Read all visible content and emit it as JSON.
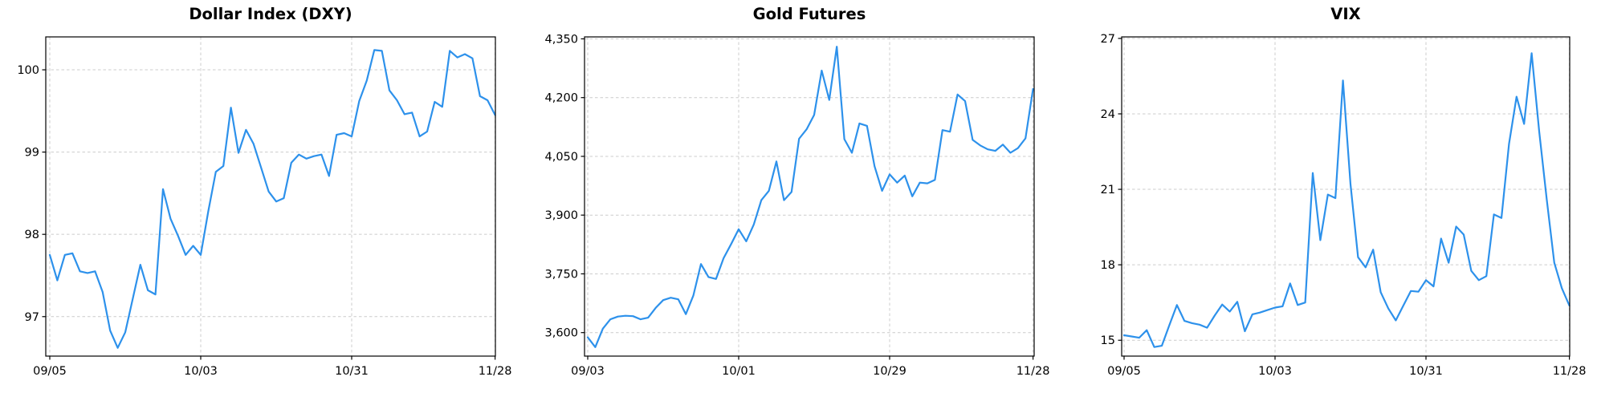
{
  "page": {
    "background": "#ffffff",
    "text_color": "#000000"
  },
  "chart_data": [
    {
      "type": "line",
      "title": "Dollar Index (DXY)",
      "series_name": "DXY",
      "line_color": "#2d91eb",
      "grid": true,
      "grid_color": "#cccccc",
      "legend": "none",
      "x_tick_labels": [
        "09/05",
        "10/03",
        "10/31",
        "11/28"
      ],
      "x_tick_indices": [
        0,
        20,
        40,
        59
      ],
      "y_ticks": [
        97,
        98,
        99,
        100
      ],
      "y_tick_labels": [
        "97",
        "98",
        "99",
        "100"
      ],
      "ylim": [
        96.52,
        100.4
      ],
      "n_points": 60,
      "values": [
        97.75,
        97.44,
        97.75,
        97.77,
        97.55,
        97.53,
        97.55,
        97.3,
        96.83,
        96.62,
        96.81,
        97.22,
        97.63,
        97.32,
        97.27,
        98.55,
        98.19,
        97.98,
        97.75,
        97.86,
        97.75,
        98.28,
        98.76,
        98.83,
        99.54,
        98.99,
        99.27,
        99.1,
        98.81,
        98.52,
        98.4,
        98.44,
        98.87,
        98.97,
        98.92,
        98.95,
        98.97,
        98.71,
        99.21,
        99.23,
        99.19,
        99.62,
        99.87,
        100.24,
        100.23,
        99.75,
        99.63,
        99.46,
        99.48,
        99.19,
        99.25,
        99.61,
        99.55,
        100.23,
        100.15,
        100.19,
        100.14,
        99.68,
        99.63,
        99.45
      ]
    },
    {
      "type": "line",
      "title": "Gold Futures",
      "series_name": "Gold Futures",
      "line_color": "#2d91eb",
      "grid": true,
      "grid_color": "#cccccc",
      "legend": "none",
      "x_tick_labels": [
        "09/03",
        "10/01",
        "10/29",
        "11/28"
      ],
      "x_tick_indices": [
        0,
        20,
        40,
        59
      ],
      "y_ticks": [
        3600,
        3750,
        3900,
        4050,
        4200,
        4350
      ],
      "y_tick_labels": [
        "3,600",
        "3,750",
        "3,900",
        "4,050",
        "4,200",
        "4,350"
      ],
      "ylim": [
        3540,
        4355
      ],
      "n_points": 60,
      "values": [
        3588,
        3563,
        3610,
        3634,
        3641,
        3643,
        3642,
        3634,
        3638,
        3663,
        3683,
        3689,
        3685,
        3647,
        3695,
        3775,
        3742,
        3737,
        3790,
        3826,
        3864,
        3833,
        3876,
        3938,
        3962,
        4037,
        3938,
        3959,
        4095,
        4119,
        4156,
        4269,
        4194,
        4330,
        4094,
        4059,
        4134,
        4128,
        4025,
        3962,
        4004,
        3983,
        4001,
        3948,
        3983,
        3981,
        3990,
        4117,
        4113,
        4208,
        4191,
        4092,
        4078,
        4068,
        4064,
        4080,
        4059,
        4071,
        4096,
        4222
      ]
    },
    {
      "type": "line",
      "title": "VIX",
      "series_name": "VIX",
      "line_color": "#2d91eb",
      "grid": true,
      "grid_color": "#cccccc",
      "legend": "none",
      "x_tick_labels": [
        "09/05",
        "10/03",
        "10/31",
        "11/28"
      ],
      "x_tick_indices": [
        0,
        20,
        40,
        59
      ],
      "y_ticks": [
        15,
        18,
        21,
        24,
        27
      ],
      "y_tick_labels": [
        "15",
        "18",
        "21",
        "24",
        "27"
      ],
      "ylim": [
        14.37,
        27.06
      ],
      "n_points": 60,
      "values": [
        15.2,
        15.15,
        15.1,
        15.4,
        14.73,
        14.78,
        15.6,
        16.4,
        15.77,
        15.68,
        15.62,
        15.5,
        15.98,
        16.42,
        16.14,
        16.53,
        15.36,
        16.03,
        16.1,
        16.2,
        16.3,
        16.35,
        17.26,
        16.4,
        16.5,
        21.65,
        18.98,
        20.79,
        20.65,
        25.33,
        21.2,
        18.3,
        17.9,
        18.6,
        16.91,
        16.27,
        15.79,
        16.38,
        16.96,
        16.93,
        17.39,
        17.14,
        19.04,
        18.08,
        19.52,
        19.2,
        17.76,
        17.39,
        17.55,
        20.0,
        19.86,
        22.8,
        24.68,
        23.6,
        26.41,
        23.3,
        20.6,
        18.08,
        17.07,
        16.38
      ]
    }
  ]
}
